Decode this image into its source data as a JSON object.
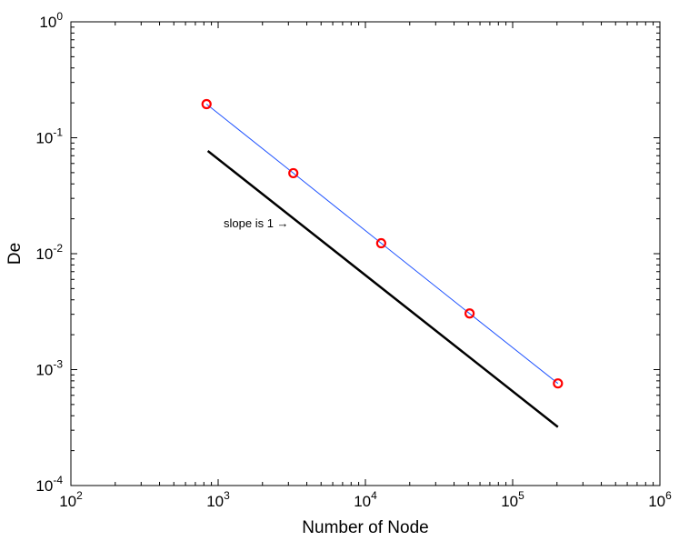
{
  "chart_data": {
    "type": "line",
    "xscale": "log",
    "yscale": "log",
    "xlim": [
      100,
      1000000
    ],
    "ylim": [
      0.0001,
      1
    ],
    "x_ticks": [
      {
        "base": "10",
        "exp": "2",
        "value": 100
      },
      {
        "base": "10",
        "exp": "3",
        "value": 1000
      },
      {
        "base": "10",
        "exp": "4",
        "value": 10000
      },
      {
        "base": "10",
        "exp": "5",
        "value": 100000
      },
      {
        "base": "10",
        "exp": "6",
        "value": 1000000
      }
    ],
    "y_ticks": [
      {
        "base": "10",
        "exp": "-4",
        "value": 0.0001
      },
      {
        "base": "10",
        "exp": "-3",
        "value": 0.001
      },
      {
        "base": "10",
        "exp": "-2",
        "value": 0.01
      },
      {
        "base": "10",
        "exp": "-1",
        "value": 0.1
      },
      {
        "base": "10",
        "exp": "0",
        "value": 1
      }
    ],
    "xlabel": "Number of Node",
    "ylabel": "De",
    "grid": false,
    "series": [
      {
        "style": "line-with-circle-markers",
        "line_color": "#2255ff",
        "marker_color": "#ff0000",
        "x": [
          834,
          3240,
          12800,
          51000,
          203000
        ],
        "y": [
          0.195,
          0.0495,
          0.0123,
          0.00305,
          0.00076
        ]
      },
      {
        "style": "thick-line",
        "line_color": "#000000",
        "x": [
          850,
          203000
        ],
        "y": [
          0.077,
          0.00032
        ]
      }
    ],
    "annotations": [
      {
        "text": "slope is 1",
        "arrow": "→",
        "x": 1000,
        "y": 0.0185
      }
    ]
  }
}
